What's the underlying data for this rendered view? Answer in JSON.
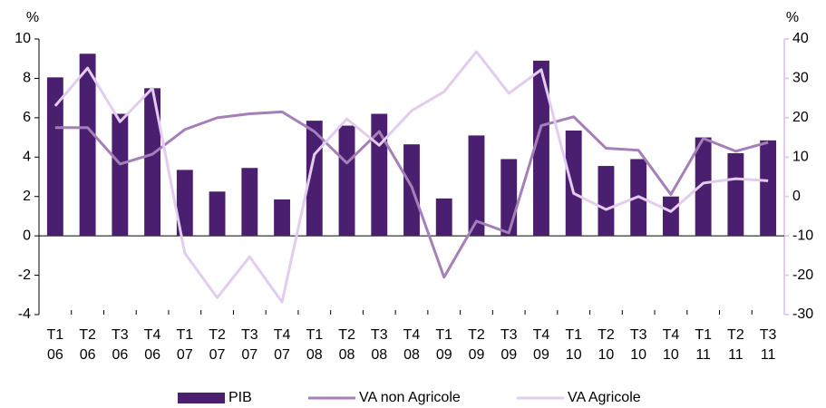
{
  "chart_data": {
    "type": "bar-line",
    "y_unit": "%",
    "y2_unit": "%",
    "categories": [
      "T1 06",
      "T2 06",
      "T3 06",
      "T4 06",
      "T1 07",
      "T2 07",
      "T3 07",
      "T4 07",
      "T1 08",
      "T2 08",
      "T3 08",
      "T4 08",
      "T1 09",
      "T2 09",
      "T3 09",
      "T4 09",
      "T1 10",
      "T2 10",
      "T3 10",
      "T4 10",
      "T1 11",
      "T2 11",
      "T3 11"
    ],
    "ylim": [
      -4,
      10
    ],
    "yticks": [
      -4,
      -2,
      0,
      2,
      4,
      6,
      8,
      10
    ],
    "y2lim": [
      -30,
      40
    ],
    "y2ticks": [
      -30,
      -20,
      -10,
      0,
      10,
      20,
      30,
      40
    ],
    "series": [
      {
        "name": "PIB",
        "kind": "bar",
        "color": "#4b1f6f",
        "values": [
          8.05,
          9.25,
          6.2,
          7.5,
          3.35,
          2.25,
          3.45,
          1.85,
          5.85,
          5.6,
          6.2,
          4.65,
          1.9,
          5.1,
          3.9,
          8.9,
          5.35,
          3.55,
          3.9,
          2.0,
          5.0,
          4.2,
          4.85
        ]
      },
      {
        "name": "VA non Agricole",
        "kind": "line",
        "color": "#a57fb7",
        "values": [
          5.5,
          5.5,
          3.65,
          4.15,
          5.4,
          6.0,
          6.2,
          6.3,
          5.3,
          3.7,
          5.3,
          2.5,
          -2.1,
          0.75,
          0.15,
          5.6,
          6.05,
          4.45,
          4.35,
          2.1,
          4.95,
          4.3,
          4.75
        ]
      },
      {
        "name": "VA Agricole",
        "kind": "line",
        "axis": "y2",
        "color": "#e3cdee",
        "values": [
          23,
          32.6,
          19,
          27.5,
          -14.4,
          -25.7,
          -15.3,
          -26.8,
          10.7,
          19.7,
          13,
          21.8,
          26.6,
          36.8,
          26.2,
          32.2,
          0.8,
          -3.3,
          0,
          -3.8,
          3.4,
          4.5,
          4
        ]
      }
    ]
  }
}
